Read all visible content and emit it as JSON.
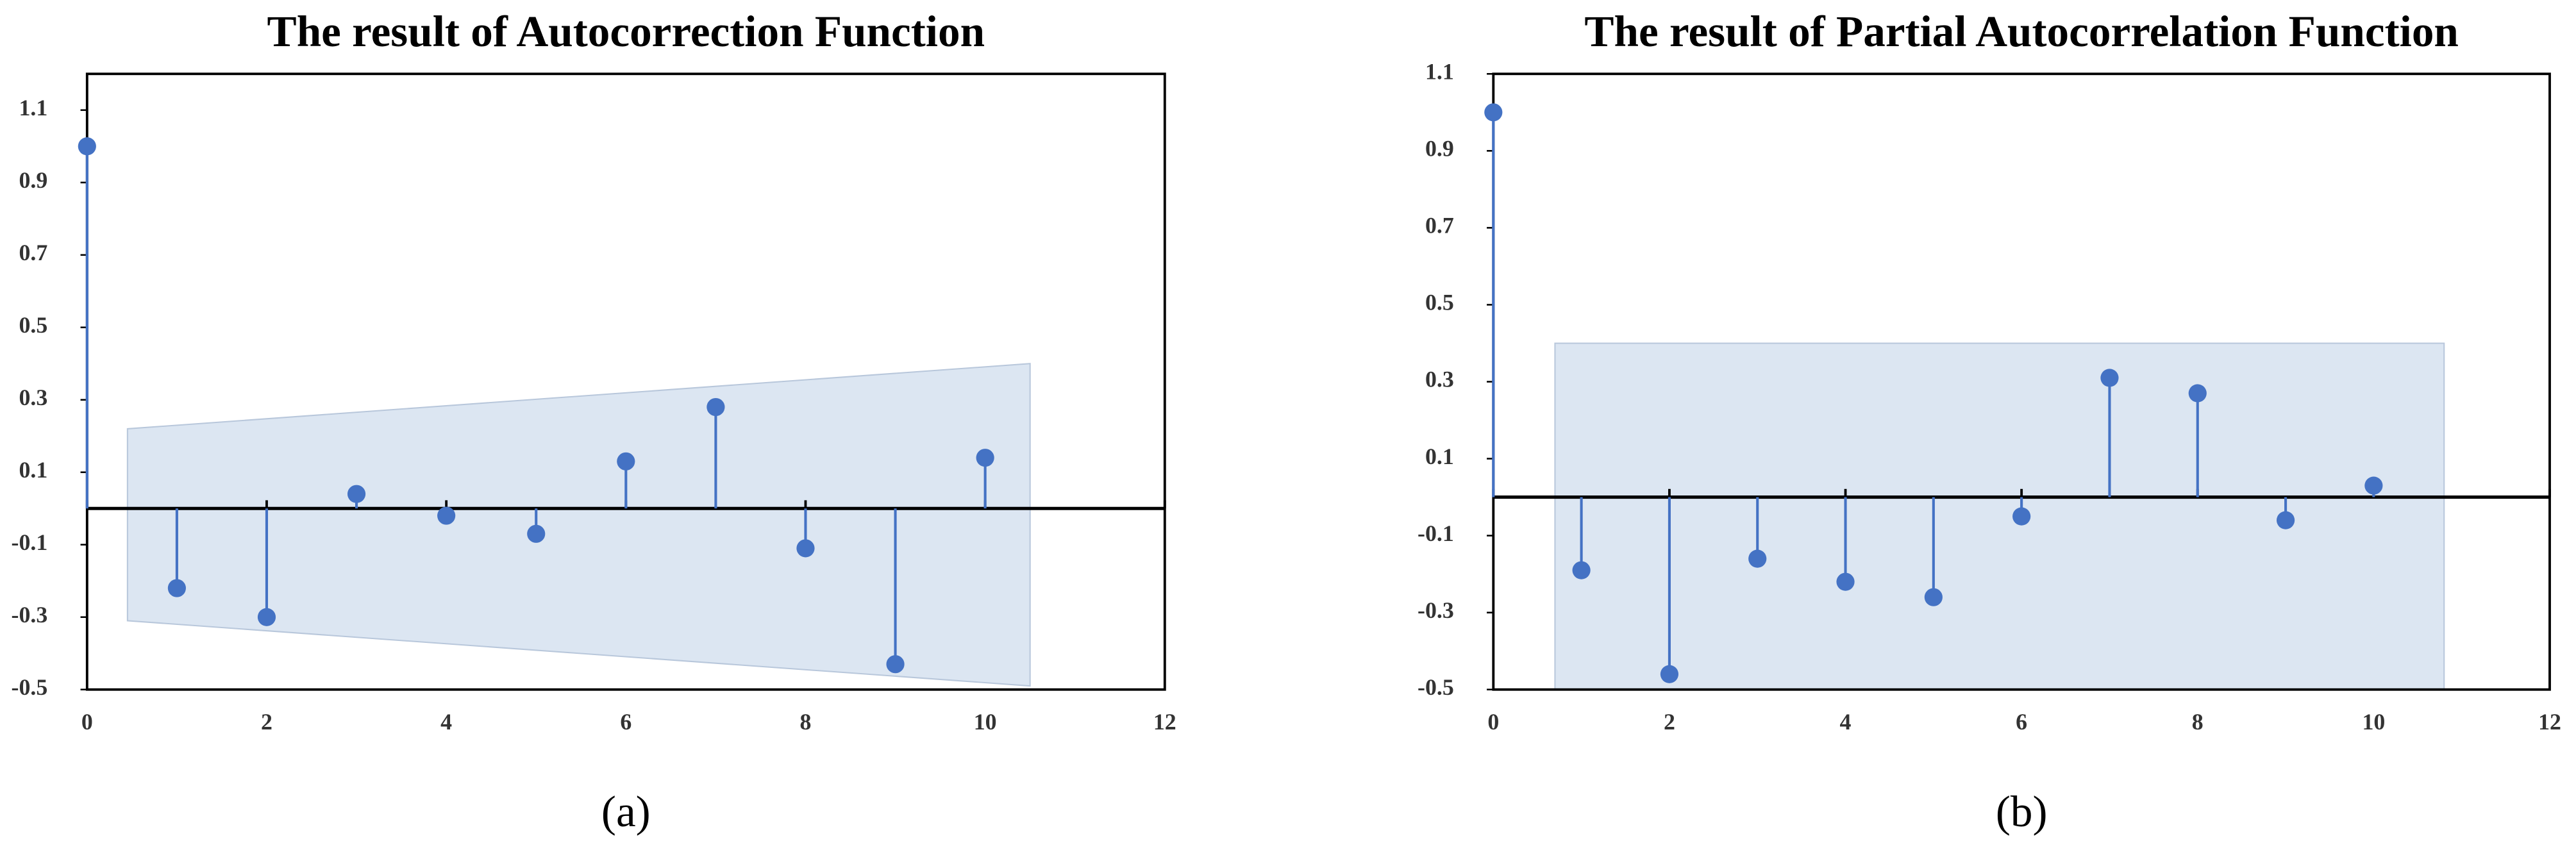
{
  "chart_data": [
    {
      "type": "stem",
      "title": "The result of Autocorrection Function",
      "caption": "(a)",
      "x": [
        0,
        1,
        2,
        3,
        4,
        5,
        6,
        7,
        8,
        9,
        10
      ],
      "values": [
        1.0,
        -0.22,
        -0.3,
        0.04,
        -0.02,
        -0.07,
        0.13,
        0.28,
        -0.11,
        -0.43,
        0.14
      ],
      "color": "#4472c4",
      "band": {
        "x": [
          0.45,
          10.5
        ],
        "upper": [
          0.22,
          0.4
        ],
        "lower": [
          -0.31,
          -0.49
        ],
        "color": "#dce6f2"
      },
      "xlim": [
        0,
        12
      ],
      "xticks": [
        0,
        2,
        4,
        6,
        8,
        10,
        12
      ],
      "ylim": [
        -0.5,
        1.2
      ],
      "yticks": [
        -0.5,
        -0.3,
        -0.1,
        0.1,
        0.3,
        0.5,
        0.7,
        0.9,
        1.1
      ]
    },
    {
      "type": "stem",
      "title": "The result of Partial Autocorrelation Function",
      "caption": "(b)",
      "x": [
        0,
        1,
        2,
        3,
        4,
        5,
        6,
        7,
        8,
        9,
        10
      ],
      "values": [
        1.0,
        -0.19,
        -0.46,
        -0.16,
        -0.22,
        -0.26,
        -0.05,
        0.31,
        0.27,
        -0.06,
        0.03
      ],
      "color": "#4472c4",
      "band": {
        "x": [
          0.7,
          10.8
        ],
        "upper": [
          0.4,
          0.4
        ],
        "lower": [
          -0.5,
          -0.5
        ],
        "color": "#dce6f2"
      },
      "xlim": [
        0,
        12
      ],
      "xticks": [
        0,
        2,
        4,
        6,
        8,
        10,
        12
      ],
      "ylim": [
        -0.5,
        1.1
      ],
      "yticks": [
        -0.5,
        -0.3,
        -0.1,
        0.1,
        0.3,
        0.5,
        0.7,
        0.9,
        1.1
      ]
    }
  ]
}
